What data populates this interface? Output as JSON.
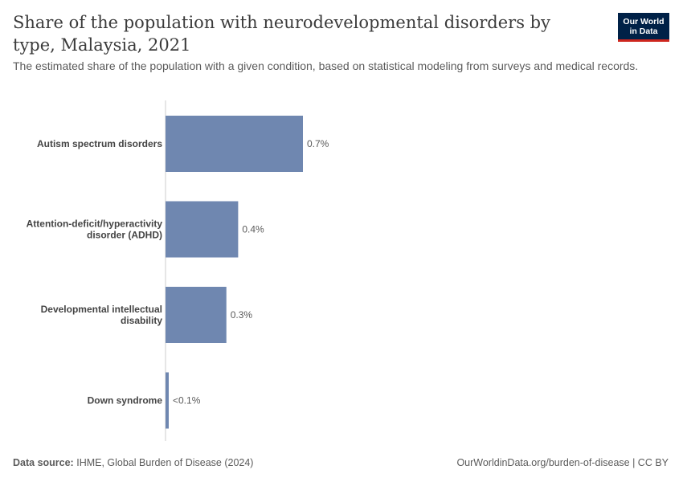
{
  "header": {
    "title": "Share of the population with neurodevelopmental disorders by type, Malaysia, 2021",
    "subtitle": "The estimated share of the population with a given condition, based on statistical modeling from surveys and medical records.",
    "logo_line1": "Our World",
    "logo_line2": "in Data"
  },
  "colors": {
    "bar": "#6f87b0",
    "axis": "#cccccc",
    "logo_bg": "#002147",
    "logo_accent": "#ce261e"
  },
  "chart_data": {
    "type": "bar",
    "orientation": "horizontal",
    "title": "Share of the population with neurodevelopmental disorders by type, Malaysia, 2021",
    "unit": "%",
    "xlim": [
      0,
      2.8
    ],
    "categories": [
      {
        "label_lines": [
          "Autism spectrum disorders"
        ],
        "value": 0.7,
        "value_label": "0.7%"
      },
      {
        "label_lines": [
          "Attention-deficit/hyperactivity",
          "disorder (ADHD)"
        ],
        "value": 0.37,
        "value_label": "0.4%"
      },
      {
        "label_lines": [
          "Developmental intellectual",
          "disability"
        ],
        "value": 0.31,
        "value_label": "0.3%"
      },
      {
        "label_lines": [
          "Down syndrome"
        ],
        "value": 0.015,
        "value_label": "<0.1%"
      }
    ]
  },
  "footer": {
    "source_label": "Data source:",
    "source_text": "IHME, Global Burden of Disease (2024)",
    "url_text": "OurWorldinData.org/burden-of-disease",
    "separator": " | ",
    "license": "CC BY"
  }
}
